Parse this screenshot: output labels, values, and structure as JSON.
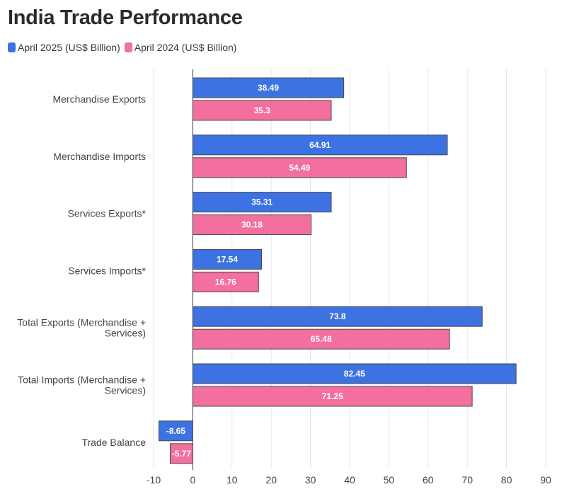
{
  "colors": {
    "series1": "#3d72e3",
    "series2": "#f26f9f",
    "grid": "#e6e6e6",
    "axis": "#333333"
  },
  "chart_data": {
    "type": "bar",
    "orientation": "horizontal",
    "title": "India Trade Performance",
    "categories": [
      [
        "Merchandise Exports"
      ],
      [
        "Merchandise Imports"
      ],
      [
        "Services Exports*"
      ],
      [
        "Services Imports*"
      ],
      [
        "Total Exports (Merchandise +",
        "Services)"
      ],
      [
        "Total Imports (Merchandise +",
        "Services)"
      ],
      [
        "Trade Balance"
      ]
    ],
    "series": [
      {
        "name": "April 2025 (US$ Billion)",
        "values": [
          38.49,
          64.91,
          35.31,
          17.54,
          73.8,
          82.45,
          -8.65
        ],
        "labels": [
          "38.49",
          "64.91",
          "35.31",
          "17.54",
          "73.8",
          "82.45",
          "-8.65"
        ]
      },
      {
        "name": "April 2024 (US$ Billion)",
        "values": [
          35.3,
          54.49,
          30.18,
          16.76,
          65.48,
          71.25,
          -5.77
        ],
        "labels": [
          "35.3",
          "54.49",
          "30.18",
          "16.76",
          "65.48",
          "71.25",
          "-5.77"
        ]
      }
    ],
    "xlim": [
      -10,
      90
    ],
    "xticks": [
      -10,
      0,
      10,
      20,
      30,
      40,
      50,
      60,
      70,
      80,
      90
    ],
    "grid": true,
    "legend_position": "top-left"
  }
}
